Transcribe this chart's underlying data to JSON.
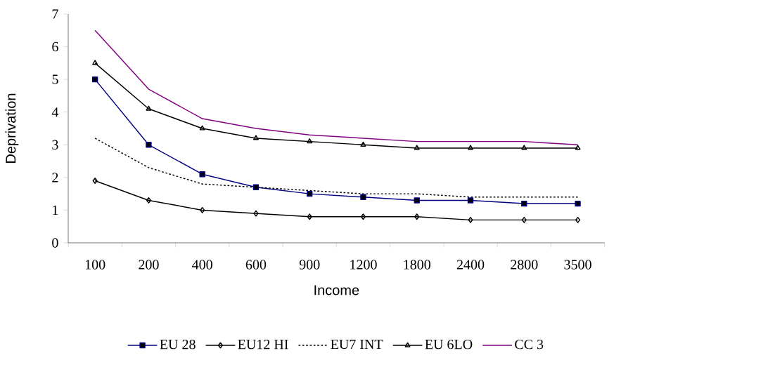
{
  "chart_data": {
    "type": "line",
    "xlabel": "Income",
    "ylabel": "Deprivation",
    "categories": [
      "100",
      "200",
      "400",
      "600",
      "900",
      "1200",
      "1800",
      "2400",
      "2800",
      "3500"
    ],
    "ylim": [
      0,
      7
    ],
    "yticks": [
      0,
      1,
      2,
      3,
      4,
      5,
      6,
      7
    ],
    "grid": false,
    "legend": "bottom",
    "series": [
      {
        "name": "EU 28",
        "color": "#000080",
        "marker": "square",
        "line_style": "solid",
        "values": [
          5,
          3,
          2.1,
          1.7,
          1.5,
          1.4,
          1.3,
          1.3,
          1.2,
          1.2
        ]
      },
      {
        "name": "EU12 HI",
        "color": "#000000",
        "marker": "diamond",
        "line_style": "solid",
        "values": [
          1.9,
          1.3,
          1.0,
          0.9,
          0.8,
          0.8,
          0.8,
          0.7,
          0.7,
          0.7
        ]
      },
      {
        "name": "EU7 INT",
        "color": "#000000",
        "marker": "none",
        "line_style": "dotted",
        "values": [
          3.2,
          2.3,
          1.8,
          1.7,
          1.6,
          1.5,
          1.5,
          1.4,
          1.4,
          1.4
        ]
      },
      {
        "name": "EU 6LO",
        "color": "#000000",
        "marker": "triangle",
        "line_style": "solid",
        "values": [
          5.5,
          4.1,
          3.5,
          3.2,
          3.1,
          3.0,
          2.9,
          2.9,
          2.9,
          2.9
        ]
      },
      {
        "name": "CC 3",
        "color": "#800080",
        "marker": "none",
        "line_style": "solid",
        "values": [
          6.5,
          4.7,
          3.8,
          3.5,
          3.3,
          3.2,
          3.1,
          3.1,
          3.1,
          3.0
        ]
      }
    ]
  }
}
